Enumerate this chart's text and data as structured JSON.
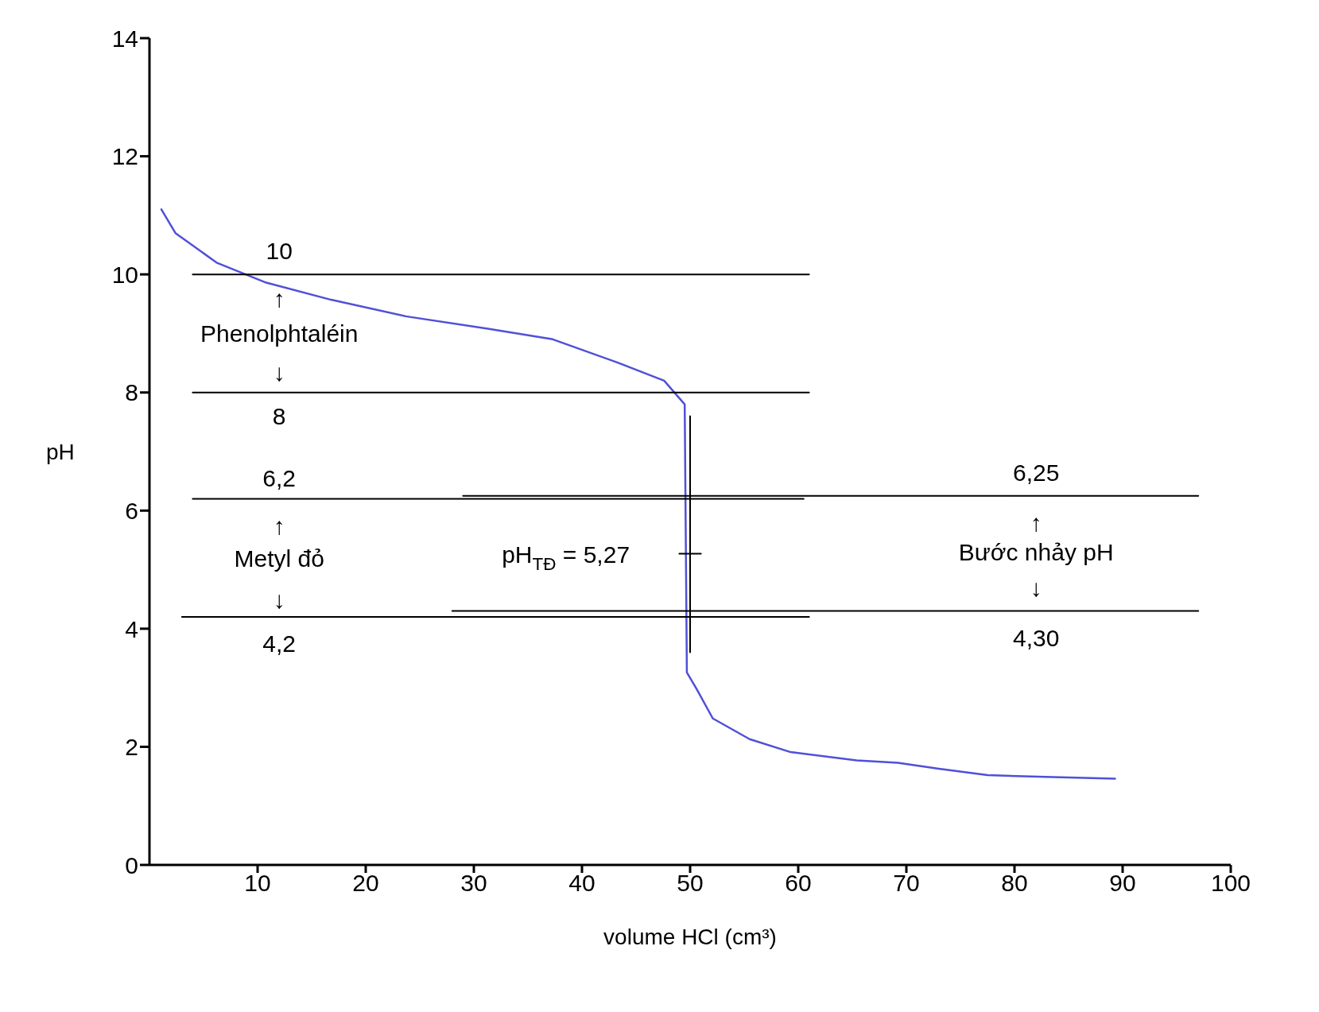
{
  "chart_data": {
    "type": "line",
    "xlabel": "volume HCl (cm³)",
    "ylabel": "pH",
    "xlim": [
      0,
      100
    ],
    "xticks": [
      10,
      20,
      30,
      40,
      50,
      60,
      70,
      80,
      90,
      100
    ],
    "ylim": [
      0,
      14
    ],
    "yticks": [
      0,
      2,
      4,
      6,
      8,
      10,
      12,
      14
    ],
    "marker": "none",
    "series": [
      {
        "color": "#5050d8",
        "x": [
          1.1,
          2.4,
          6.2,
          10.8,
          16.8,
          23.7,
          31.3,
          37.3,
          43.4,
          47.6,
          49.5,
          49.7,
          50.6,
          52.1,
          55.5,
          59.3,
          65.4,
          69.2,
          73,
          77.5,
          82.9,
          89.3
        ],
        "values": [
          11.1,
          10.7,
          10.2,
          9.86,
          9.57,
          9.29,
          9.08,
          8.9,
          8.5,
          8.2,
          7.8,
          3.26,
          2.98,
          2.48,
          2.13,
          1.91,
          1.77,
          1.73,
          1.63,
          1.52,
          1.49,
          1.46
        ]
      },
      {
        "color": "#000000",
        "x": [
          4,
          61
        ],
        "values": [
          10,
          10
        ]
      },
      {
        "color": "#000000",
        "x": [
          4,
          61
        ],
        "values": [
          8,
          8
        ]
      },
      {
        "color": "#000000",
        "x": [
          4,
          60.5
        ],
        "values": [
          6.2,
          6.2
        ]
      },
      {
        "color": "#000000",
        "x": [
          3,
          61
        ],
        "values": [
          4.2,
          4.2
        ]
      },
      {
        "color": "#000000",
        "x": [
          29,
          97
        ],
        "values": [
          6.25,
          6.25
        ]
      },
      {
        "color": "#000000",
        "x": [
          28,
          97
        ],
        "values": [
          4.3,
          4.3
        ]
      },
      {
        "color": "#000000",
        "x": [
          50,
          50
        ],
        "values": [
          3.6,
          7.6
        ]
      },
      {
        "color": "#000000",
        "x": [
          49,
          51
        ],
        "values": [
          5.27,
          5.27
        ]
      }
    ],
    "annotations": [
      "10",
      "↑",
      "Phenolphtaléin",
      "↓",
      "8",
      "6,2",
      "↑",
      "Metyl đỏ",
      "↓",
      "4,2",
      "pH$_{TĐ}$ = 5,27",
      "6,25",
      "↑",
      "Bước nhảy pH",
      "↓",
      "4,30"
    ]
  }
}
